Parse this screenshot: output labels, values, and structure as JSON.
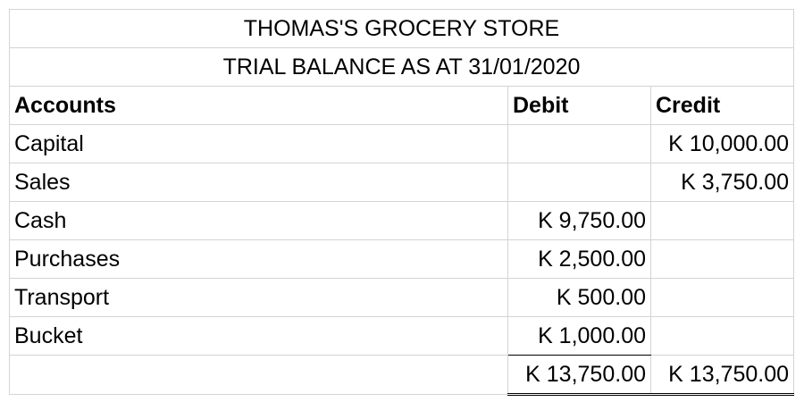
{
  "title": "THOMAS'S GROCERY STORE",
  "subtitle": "TRIAL BALANCE AS AT 31/01/2020",
  "headers": {
    "accounts": "Accounts",
    "debit": "Debit",
    "credit": "Credit"
  },
  "rows": [
    {
      "account": "Capital",
      "debit": "",
      "credit": "K 10,000.00"
    },
    {
      "account": "Sales",
      "debit": "",
      "credit": "K 3,750.00"
    },
    {
      "account": "Cash",
      "debit": "K 9,750.00",
      "credit": ""
    },
    {
      "account": "Purchases",
      "debit": "K 2,500.00",
      "credit": ""
    },
    {
      "account": "Transport",
      "debit": "K 500.00",
      "credit": ""
    },
    {
      "account": "Bucket",
      "debit": "K 1,000.00",
      "credit": ""
    }
  ],
  "totals": {
    "label": "",
    "debit": "K 13,750.00",
    "credit": "K 13,750.00"
  }
}
